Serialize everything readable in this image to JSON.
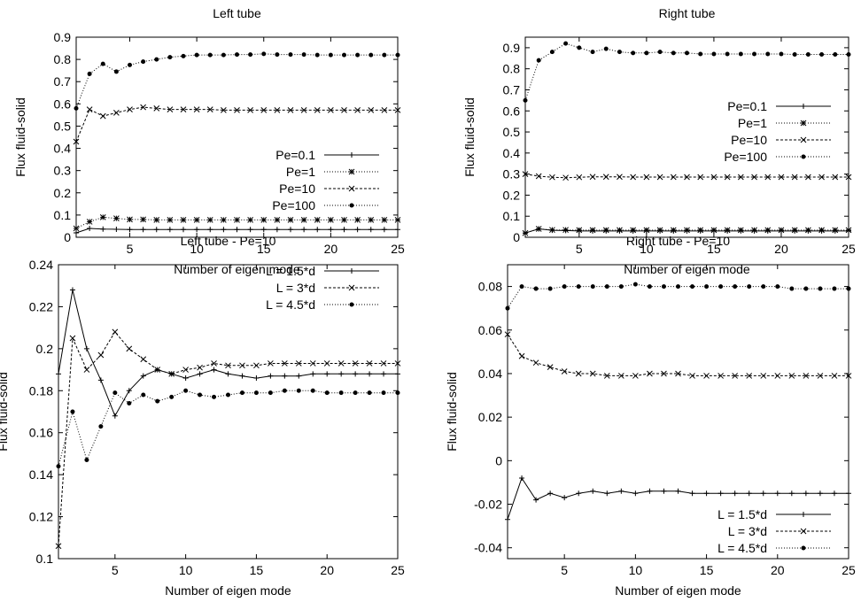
{
  "chart_data": [
    {
      "type": "line",
      "title": "Left tube",
      "xlabel": "Number of eigen mode",
      "ylabel": "Flux fluid-solid",
      "xlim": [
        1,
        25
      ],
      "ylim": [
        0,
        0.9
      ],
      "xticks": [
        5,
        10,
        15,
        20,
        25
      ],
      "yticks": [
        0,
        0.1,
        0.2,
        0.3,
        0.4,
        0.5,
        0.6,
        0.7,
        0.8,
        0.9
      ],
      "legend": "center-right",
      "x": [
        1,
        2,
        3,
        4,
        5,
        6,
        7,
        8,
        9,
        10,
        11,
        12,
        13,
        14,
        15,
        16,
        17,
        18,
        19,
        20,
        21,
        22,
        23,
        24,
        25
      ],
      "series": [
        {
          "name": "Pe=0.1",
          "dash": "solid",
          "marker": "plus",
          "values": [
            0.02,
            0.04,
            0.037,
            0.036,
            0.035,
            0.035,
            0.035,
            0.035,
            0.035,
            0.035,
            0.035,
            0.035,
            0.035,
            0.035,
            0.035,
            0.035,
            0.035,
            0.035,
            0.035,
            0.035,
            0.035,
            0.035,
            0.035,
            0.035,
            0.035
          ]
        },
        {
          "name": "Pe=1",
          "dash": "dotted",
          "marker": "star",
          "values": [
            0.04,
            0.07,
            0.09,
            0.085,
            0.08,
            0.08,
            0.078,
            0.078,
            0.078,
            0.078,
            0.078,
            0.078,
            0.078,
            0.078,
            0.078,
            0.078,
            0.078,
            0.078,
            0.078,
            0.078,
            0.078,
            0.078,
            0.078,
            0.078,
            0.078
          ]
        },
        {
          "name": "Pe=10",
          "dash": "dashed",
          "marker": "cross",
          "values": [
            0.43,
            0.575,
            0.545,
            0.56,
            0.575,
            0.585,
            0.58,
            0.575,
            0.575,
            0.575,
            0.575,
            0.572,
            0.572,
            0.572,
            0.572,
            0.572,
            0.572,
            0.572,
            0.572,
            0.572,
            0.572,
            0.572,
            0.572,
            0.572,
            0.572
          ]
        },
        {
          "name": "Pe=100",
          "dash": "dotted",
          "marker": "dot",
          "values": [
            0.58,
            0.735,
            0.78,
            0.745,
            0.775,
            0.79,
            0.8,
            0.81,
            0.815,
            0.82,
            0.82,
            0.82,
            0.822,
            0.822,
            0.825,
            0.822,
            0.822,
            0.822,
            0.82,
            0.82,
            0.82,
            0.82,
            0.82,
            0.82,
            0.82
          ]
        }
      ]
    },
    {
      "type": "line",
      "title": "Right tube",
      "xlabel": "Number of eigen mode",
      "ylabel": "Flux fluid-solid",
      "xlim": [
        1,
        25
      ],
      "ylim": [
        0,
        0.95
      ],
      "xticks": [
        5,
        10,
        15,
        20,
        25
      ],
      "yticks": [
        0,
        0.1,
        0.2,
        0.3,
        0.4,
        0.5,
        0.6,
        0.7,
        0.8,
        0.9
      ],
      "legend": "center-right",
      "x": [
        1,
        2,
        3,
        4,
        5,
        6,
        7,
        8,
        9,
        10,
        11,
        12,
        13,
        14,
        15,
        16,
        17,
        18,
        19,
        20,
        21,
        22,
        23,
        24,
        25
      ],
      "series": [
        {
          "name": "Pe=0.1",
          "dash": "solid",
          "marker": "plus",
          "values": [
            0.02,
            0.04,
            0.033,
            0.032,
            0.03,
            0.03,
            0.03,
            0.03,
            0.03,
            0.03,
            0.03,
            0.03,
            0.03,
            0.03,
            0.03,
            0.03,
            0.03,
            0.03,
            0.03,
            0.03,
            0.03,
            0.03,
            0.03,
            0.03,
            0.03
          ]
        },
        {
          "name": "Pe=1",
          "dash": "dotted",
          "marker": "star",
          "values": [
            0.02,
            0.04,
            0.035,
            0.035,
            0.034,
            0.034,
            0.034,
            0.034,
            0.034,
            0.034,
            0.034,
            0.034,
            0.034,
            0.034,
            0.034,
            0.034,
            0.034,
            0.034,
            0.034,
            0.034,
            0.034,
            0.034,
            0.034,
            0.034,
            0.034
          ]
        },
        {
          "name": "Pe=10",
          "dash": "dashed",
          "marker": "cross",
          "values": [
            0.3,
            0.29,
            0.285,
            0.283,
            0.285,
            0.287,
            0.287,
            0.287,
            0.286,
            0.286,
            0.286,
            0.286,
            0.286,
            0.286,
            0.286,
            0.286,
            0.286,
            0.286,
            0.286,
            0.286,
            0.286,
            0.286,
            0.286,
            0.286,
            0.286
          ]
        },
        {
          "name": "Pe=100",
          "dash": "dotted",
          "marker": "dot",
          "values": [
            0.65,
            0.84,
            0.88,
            0.92,
            0.9,
            0.88,
            0.895,
            0.88,
            0.875,
            0.875,
            0.88,
            0.875,
            0.875,
            0.87,
            0.87,
            0.87,
            0.87,
            0.87,
            0.87,
            0.87,
            0.868,
            0.868,
            0.868,
            0.868,
            0.868
          ]
        }
      ]
    },
    {
      "type": "line",
      "title": "Left tube - Pe=10",
      "xlabel": "Number of eigen mode",
      "ylabel": "Flux fluid-solid",
      "xlim": [
        1,
        25
      ],
      "ylim": [
        0.1,
        0.24
      ],
      "xticks": [
        5,
        10,
        15,
        20,
        25
      ],
      "yticks": [
        0.1,
        0.12,
        0.14,
        0.16,
        0.18,
        0.2,
        0.22,
        0.24
      ],
      "legend": "top-right",
      "x": [
        1,
        2,
        3,
        4,
        5,
        6,
        7,
        8,
        9,
        10,
        11,
        12,
        13,
        14,
        15,
        16,
        17,
        18,
        19,
        20,
        21,
        22,
        23,
        24,
        25
      ],
      "series": [
        {
          "name": "L = 1.5*d",
          "dash": "solid",
          "marker": "plus",
          "values": [
            0.188,
            0.228,
            0.2,
            0.185,
            0.168,
            0.18,
            0.187,
            0.19,
            0.188,
            0.186,
            0.188,
            0.19,
            0.188,
            0.187,
            0.186,
            0.187,
            0.187,
            0.187,
            0.188,
            0.188,
            0.188,
            0.188,
            0.188,
            0.188,
            0.188
          ]
        },
        {
          "name": "L = 3*d",
          "dash": "dashed",
          "marker": "cross",
          "values": [
            0.106,
            0.205,
            0.19,
            0.197,
            0.208,
            0.2,
            0.195,
            0.19,
            0.188,
            0.19,
            0.191,
            0.193,
            0.192,
            0.192,
            0.192,
            0.193,
            0.193,
            0.193,
            0.193,
            0.193,
            0.193,
            0.193,
            0.193,
            0.193,
            0.193
          ]
        },
        {
          "name": "L = 4.5*d",
          "dash": "dotted",
          "marker": "dot",
          "values": [
            0.144,
            0.17,
            0.147,
            0.163,
            0.179,
            0.174,
            0.178,
            0.175,
            0.177,
            0.18,
            0.178,
            0.177,
            0.178,
            0.179,
            0.179,
            0.179,
            0.18,
            0.18,
            0.18,
            0.179,
            0.179,
            0.179,
            0.179,
            0.179,
            0.179
          ]
        }
      ]
    },
    {
      "type": "line",
      "title": "Right tube - Pe=10",
      "xlabel": "Number of eigen mode",
      "ylabel": "Flux fluid-solid",
      "xlim": [
        1,
        25
      ],
      "ylim": [
        -0.045,
        0.09
      ],
      "xticks": [
        5,
        10,
        15,
        20,
        25
      ],
      "yticks": [
        -0.04,
        -0.02,
        0,
        0.02,
        0.04,
        0.06,
        0.08
      ],
      "legend": "bottom-right",
      "x": [
        1,
        2,
        3,
        4,
        5,
        6,
        7,
        8,
        9,
        10,
        11,
        12,
        13,
        14,
        15,
        16,
        17,
        18,
        19,
        20,
        21,
        22,
        23,
        24,
        25
      ],
      "series": [
        {
          "name": "L = 1.5*d",
          "dash": "solid",
          "marker": "plus",
          "values": [
            -0.027,
            -0.008,
            -0.018,
            -0.015,
            -0.017,
            -0.015,
            -0.014,
            -0.015,
            -0.014,
            -0.015,
            -0.014,
            -0.014,
            -0.014,
            -0.015,
            -0.015,
            -0.015,
            -0.015,
            -0.015,
            -0.015,
            -0.015,
            -0.015,
            -0.015,
            -0.015,
            -0.015,
            -0.015
          ]
        },
        {
          "name": "L = 3*d",
          "dash": "dashed",
          "marker": "cross",
          "values": [
            0.058,
            0.048,
            0.045,
            0.043,
            0.041,
            0.04,
            0.04,
            0.039,
            0.039,
            0.039,
            0.04,
            0.04,
            0.04,
            0.039,
            0.039,
            0.039,
            0.039,
            0.039,
            0.039,
            0.039,
            0.039,
            0.039,
            0.039,
            0.039,
            0.039
          ]
        },
        {
          "name": "L = 4.5*d",
          "dash": "dotted",
          "marker": "dot",
          "values": [
            0.07,
            0.08,
            0.079,
            0.079,
            0.08,
            0.08,
            0.08,
            0.08,
            0.08,
            0.081,
            0.08,
            0.08,
            0.08,
            0.08,
            0.08,
            0.08,
            0.08,
            0.08,
            0.08,
            0.08,
            0.079,
            0.079,
            0.079,
            0.079,
            0.079
          ]
        }
      ]
    }
  ]
}
